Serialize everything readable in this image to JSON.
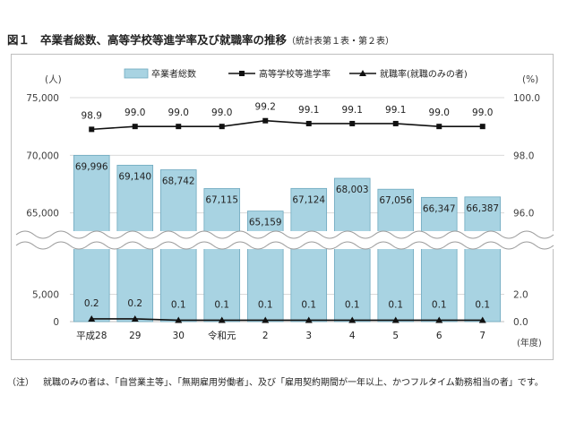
{
  "figure": {
    "label": "図１",
    "title": "卒業者総数、高等学校等進学率及び就職率の推移",
    "subtitle": "（統計表第１表・第２表）"
  },
  "note": {
    "tag": "（注）",
    "text": "就職のみの者は、「自営業主等」、「無期雇用労働者」、及び「雇用契約期間が一年以上、かつフルタイム勤務相当の者」です。"
  },
  "colors": {
    "bar_fill": "#a8d3e2",
    "bar_stroke": "#6fa9bf",
    "line": "#111111",
    "grid": "#d9d9d9",
    "axis_text": "#404040"
  },
  "chart_data": {
    "type": "bar",
    "categories": [
      "平成28",
      "29",
      "30",
      "令和元",
      "2",
      "3",
      "4",
      "5",
      "6",
      "7"
    ],
    "x_unit": "(年度)",
    "y_left_unit": "(人)",
    "y_right_unit": "(%)",
    "y_left_ticks_upper": [
      "75,000",
      "70,000",
      "65,000"
    ],
    "y_left_ticks_lower": [
      "5,000",
      "0"
    ],
    "y_right_ticks_upper": [
      "100.0",
      "98.0",
      "96.0"
    ],
    "y_right_ticks_lower": [
      "2.0",
      "0.0"
    ],
    "axis_break": true,
    "legend_position": "top",
    "grid": true,
    "series": [
      {
        "name": "卒業者総数",
        "kind": "bar",
        "axis": "left",
        "ylim": [
          60000,
          75000
        ],
        "values": [
          69996,
          69140,
          68742,
          67115,
          65159,
          67124,
          68003,
          67056,
          66347,
          66387
        ],
        "labels": [
          "69,996",
          "69,140",
          "68,742",
          "67,115",
          "65,159",
          "67,124",
          "68,003",
          "67,056",
          "66,347",
          "66,387"
        ]
      },
      {
        "name": "高等学校等進学率",
        "kind": "line",
        "marker": "square",
        "axis": "right",
        "ylim": [
          94.0,
          100.0
        ],
        "values": [
          98.9,
          99.0,
          99.0,
          99.0,
          99.2,
          99.1,
          99.1,
          99.1,
          99.0,
          99.0
        ],
        "labels": [
          "98.9",
          "99.0",
          "99.0",
          "99.0",
          "99.2",
          "99.1",
          "99.1",
          "99.1",
          "99.0",
          "99.0"
        ]
      },
      {
        "name": "就職率(就職のみの者)",
        "kind": "line",
        "marker": "triangle",
        "axis": "right",
        "ylim": [
          0.0,
          4.0
        ],
        "values": [
          0.2,
          0.2,
          0.1,
          0.1,
          0.1,
          0.1,
          0.1,
          0.1,
          0.1,
          0.1
        ],
        "labels": [
          "0.2",
          "0.2",
          "0.1",
          "0.1",
          "0.1",
          "0.1",
          "0.1",
          "0.1",
          "0.1",
          "0.1"
        ]
      }
    ]
  }
}
